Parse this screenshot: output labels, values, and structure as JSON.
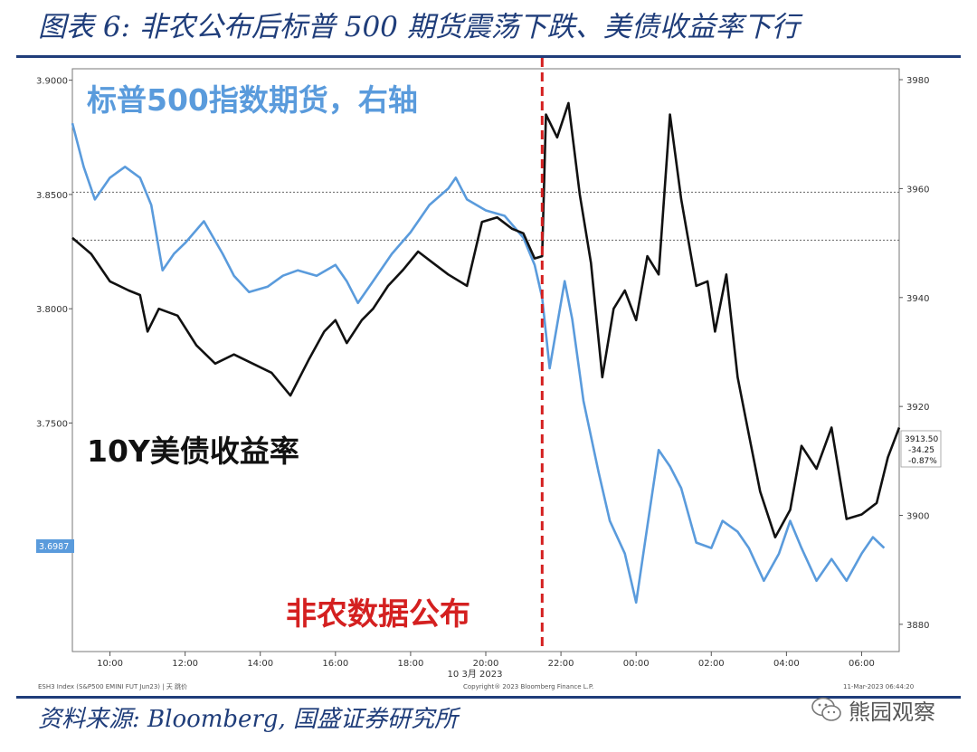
{
  "title": "图表 6:  非农公布后标普 500 期货震荡下跌、美债收益率下行",
  "source": "资料来源:  Bloomberg, 国盛证券研究所",
  "watermark": "熊园观察",
  "chart_data": {
    "type": "line",
    "annotations": {
      "spx_label": "标普500指数期货，右轴",
      "yield_label": "10Y美债收益率",
      "event_label": "非农数据公布"
    },
    "x_ticks": [
      "10:00",
      "12:00",
      "14:00",
      "16:00",
      "18:00",
      "20:00",
      "22:00",
      "00:00",
      "02:00",
      "04:00",
      "06:00"
    ],
    "date_label": "10 3月 2023",
    "x_range": [
      9.0,
      31.0
    ],
    "event_time": 21.5,
    "left_axis": {
      "ticks": [
        "3.9000",
        "3.8500",
        "3.8000",
        "3.7500"
      ],
      "ylim": [
        3.65,
        3.905
      ],
      "last_value": "3.6987"
    },
    "right_axis": {
      "ticks": [
        "3980",
        "3960",
        "3940",
        "3920",
        "3900",
        "3880"
      ],
      "ylim": [
        3875,
        3982
      ]
    },
    "right_last": {
      "price": "3913.50",
      "change": "-34.25",
      "pct": "-0.87%"
    },
    "ref_lines_left": [
      3.851,
      3.83
    ],
    "footer": {
      "left": "ESH3 Index (S&P500 EMINI FUT  Jun23) | 天  跳价",
      "center": "Copyright® 2023 Bloomberg Finance L.P.",
      "right": "11-Mar-2023 06:44:20"
    },
    "colors": {
      "spx": "#5a9bdc",
      "yield": "#111111",
      "event": "#d42020",
      "title": "#1f3d7a",
      "label_blue": "#5a9bdc"
    },
    "series": [
      {
        "key": "spx",
        "axis": "right",
        "points": [
          [
            9.0,
            3972
          ],
          [
            9.3,
            3964
          ],
          [
            9.6,
            3958
          ],
          [
            10.0,
            3962
          ],
          [
            10.4,
            3964
          ],
          [
            10.8,
            3962
          ],
          [
            11.1,
            3957
          ],
          [
            11.4,
            3945
          ],
          [
            11.7,
            3948
          ],
          [
            12.0,
            3950
          ],
          [
            12.5,
            3954
          ],
          [
            13.0,
            3948
          ],
          [
            13.3,
            3944
          ],
          [
            13.7,
            3941
          ],
          [
            14.2,
            3942
          ],
          [
            14.6,
            3944
          ],
          [
            15.0,
            3945
          ],
          [
            15.5,
            3944
          ],
          [
            16.0,
            3946
          ],
          [
            16.3,
            3943
          ],
          [
            16.6,
            3939
          ],
          [
            17.0,
            3943
          ],
          [
            17.5,
            3948
          ],
          [
            18.0,
            3952
          ],
          [
            18.5,
            3957
          ],
          [
            19.0,
            3960
          ],
          [
            19.2,
            3962
          ],
          [
            19.5,
            3958
          ],
          [
            20.0,
            3956
          ],
          [
            20.5,
            3955
          ],
          [
            21.0,
            3951
          ],
          [
            21.3,
            3946
          ],
          [
            21.5,
            3940
          ],
          [
            21.7,
            3927
          ],
          [
            21.9,
            3935
          ],
          [
            22.1,
            3943
          ],
          [
            22.3,
            3936
          ],
          [
            22.6,
            3921
          ],
          [
            23.0,
            3908
          ],
          [
            23.3,
            3899
          ],
          [
            23.7,
            3893
          ],
          [
            24.0,
            3884
          ],
          [
            24.3,
            3898
          ],
          [
            24.6,
            3912
          ],
          [
            24.9,
            3909
          ],
          [
            25.2,
            3905
          ],
          [
            25.6,
            3895
          ],
          [
            26.0,
            3894
          ],
          [
            26.3,
            3899
          ],
          [
            26.7,
            3897
          ],
          [
            27.0,
            3894
          ],
          [
            27.4,
            3888
          ],
          [
            27.8,
            3893
          ],
          [
            28.1,
            3899
          ],
          [
            28.4,
            3894
          ],
          [
            28.8,
            3888
          ],
          [
            29.2,
            3892
          ],
          [
            29.6,
            3888
          ],
          [
            30.0,
            3893
          ],
          [
            30.3,
            3896
          ],
          [
            30.6,
            3894
          ]
        ]
      },
      {
        "key": "yield",
        "axis": "left",
        "points": [
          [
            9.0,
            3.831
          ],
          [
            9.5,
            3.824
          ],
          [
            10.0,
            3.812
          ],
          [
            10.5,
            3.808
          ],
          [
            10.8,
            3.806
          ],
          [
            11.0,
            3.79
          ],
          [
            11.3,
            3.8
          ],
          [
            11.8,
            3.797
          ],
          [
            12.3,
            3.784
          ],
          [
            12.8,
            3.776
          ],
          [
            13.3,
            3.78
          ],
          [
            13.8,
            3.776
          ],
          [
            14.3,
            3.772
          ],
          [
            14.8,
            3.762
          ],
          [
            15.3,
            3.778
          ],
          [
            15.7,
            3.79
          ],
          [
            16.0,
            3.795
          ],
          [
            16.3,
            3.785
          ],
          [
            16.7,
            3.795
          ],
          [
            17.0,
            3.8
          ],
          [
            17.4,
            3.81
          ],
          [
            17.8,
            3.817
          ],
          [
            18.2,
            3.825
          ],
          [
            18.6,
            3.82
          ],
          [
            19.0,
            3.815
          ],
          [
            19.5,
            3.81
          ],
          [
            19.9,
            3.838
          ],
          [
            20.3,
            3.84
          ],
          [
            20.7,
            3.835
          ],
          [
            21.0,
            3.833
          ],
          [
            21.3,
            3.822
          ],
          [
            21.5,
            3.823
          ],
          [
            21.6,
            3.885
          ],
          [
            21.9,
            3.875
          ],
          [
            22.2,
            3.89
          ],
          [
            22.5,
            3.85
          ],
          [
            22.8,
            3.82
          ],
          [
            23.1,
            3.77
          ],
          [
            23.4,
            3.8
          ],
          [
            23.7,
            3.808
          ],
          [
            24.0,
            3.795
          ],
          [
            24.3,
            3.823
          ],
          [
            24.6,
            3.815
          ],
          [
            24.9,
            3.885
          ],
          [
            25.2,
            3.848
          ],
          [
            25.6,
            3.81
          ],
          [
            25.9,
            3.812
          ],
          [
            26.1,
            3.79
          ],
          [
            26.4,
            3.815
          ],
          [
            26.7,
            3.77
          ],
          [
            27.0,
            3.745
          ],
          [
            27.3,
            3.72
          ],
          [
            27.7,
            3.7
          ],
          [
            28.1,
            3.712
          ],
          [
            28.4,
            3.74
          ],
          [
            28.8,
            3.73
          ],
          [
            29.2,
            3.748
          ],
          [
            29.6,
            3.708
          ],
          [
            30.0,
            3.71
          ],
          [
            30.4,
            3.715
          ],
          [
            30.7,
            3.735
          ],
          [
            31.0,
            3.748
          ]
        ]
      }
    ]
  }
}
